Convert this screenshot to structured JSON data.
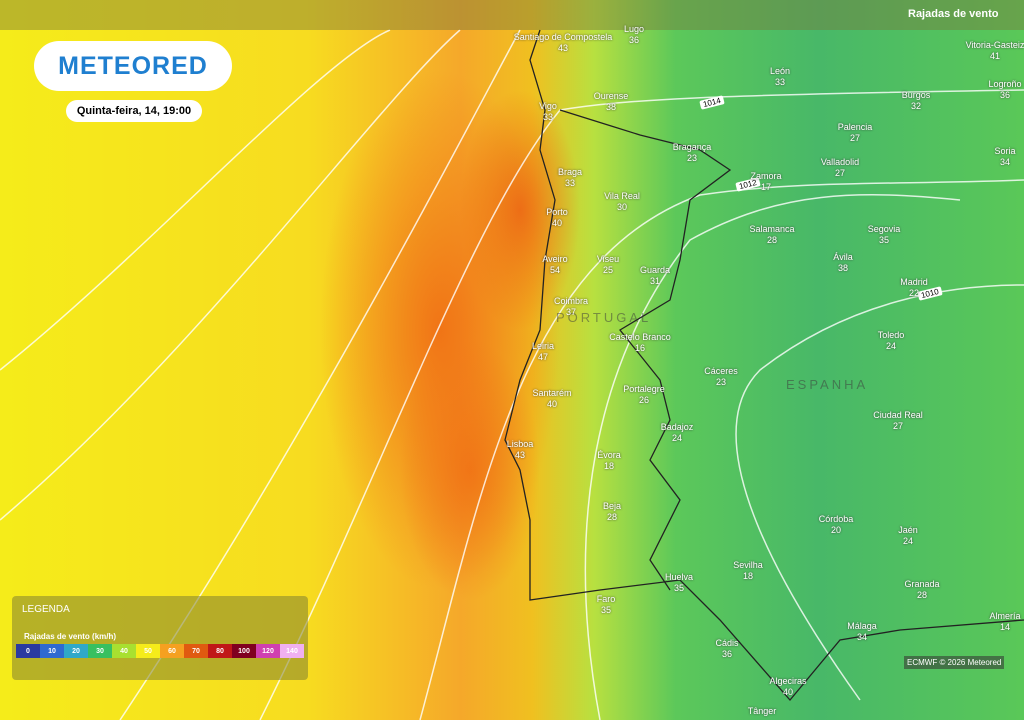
{
  "header": {
    "logo": "METEORED",
    "date": "Quinta-feira, 14, 19:00",
    "layer": "Rajadas de vento"
  },
  "legend": {
    "title": "LEGENDA",
    "subtitle": "Rajadas de vento (km/h)",
    "scale": [
      0,
      10,
      20,
      30,
      40,
      50,
      60,
      70,
      80,
      100,
      120,
      140
    ]
  },
  "map": {
    "countries": [
      "PORTUGAL",
      "ESPANHA"
    ],
    "isobars": [
      "1014",
      "1012",
      "1010"
    ],
    "cities": [
      {
        "name": "Santiago de Compostela",
        "value": 43
      },
      {
        "name": "Lugo",
        "value": 36
      },
      {
        "name": "Vigo",
        "value": 33
      },
      {
        "name": "Ourense",
        "value": 38
      },
      {
        "name": "León",
        "value": 33
      },
      {
        "name": "Burgos",
        "value": 32
      },
      {
        "name": "Vitoria-Gasteiz",
        "value": 41
      },
      {
        "name": "Logroño",
        "value": 36
      },
      {
        "name": "Palencia",
        "value": 27
      },
      {
        "name": "Soria",
        "value": 34
      },
      {
        "name": "Bragança",
        "value": 23
      },
      {
        "name": "Braga",
        "value": 33
      },
      {
        "name": "Valladolid",
        "value": 27
      },
      {
        "name": "Zamora",
        "value": 17
      },
      {
        "name": "Vila Real",
        "value": 30
      },
      {
        "name": "Porto",
        "value": 40
      },
      {
        "name": "Salamanca",
        "value": 28
      },
      {
        "name": "Segovia",
        "value": 35
      },
      {
        "name": "Viseu",
        "value": 25
      },
      {
        "name": "Aveiro",
        "value": 54
      },
      {
        "name": "Guarda",
        "value": 31
      },
      {
        "name": "Ávila",
        "value": 38
      },
      {
        "name": "Madrid",
        "value": 22
      },
      {
        "name": "Coimbra",
        "value": 37
      },
      {
        "name": "Castelo Branco",
        "value": 16
      },
      {
        "name": "Toledo",
        "value": 24
      },
      {
        "name": "Leiria",
        "value": 47
      },
      {
        "name": "Cáceres",
        "value": 23
      },
      {
        "name": "Portalegre",
        "value": 26
      },
      {
        "name": "Santarém",
        "value": 40
      },
      {
        "name": "Ciudad Real",
        "value": 27
      },
      {
        "name": "Badajoz",
        "value": 24
      },
      {
        "name": "Lisboa",
        "value": 43
      },
      {
        "name": "Évora",
        "value": 18
      },
      {
        "name": "Beja",
        "value": 28
      },
      {
        "name": "Córdoba",
        "value": 20
      },
      {
        "name": "Jaén",
        "value": 24
      },
      {
        "name": "Sevilha",
        "value": 18
      },
      {
        "name": "Huelva",
        "value": 35
      },
      {
        "name": "Granada",
        "value": 28
      },
      {
        "name": "Faro",
        "value": 35
      },
      {
        "name": "Málaga",
        "value": 34
      },
      {
        "name": "Almería",
        "value": 14
      },
      {
        "name": "Cádis",
        "value": 36
      },
      {
        "name": "Algeciras",
        "value": 40
      },
      {
        "name": "Tânger"
      }
    ]
  },
  "credit": "ECMWF © 2026 Meteored"
}
